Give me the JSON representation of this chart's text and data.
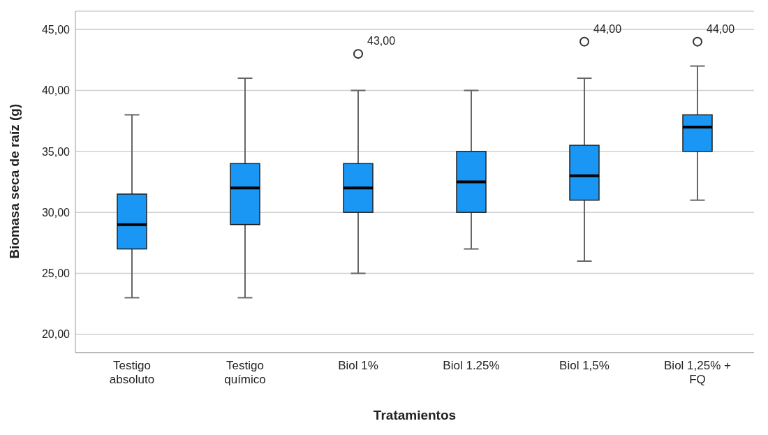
{
  "chart_data": {
    "type": "box",
    "xlabel": "Tratamientos",
    "ylabel": "Biomasa seca de raíz (g)",
    "categories": [
      "Testigo absoluto",
      "Testigo químico",
      "Biol 1%",
      "Biol 1.25%",
      "Biol 1,5%",
      "Biol 1,25% + FQ"
    ],
    "color": "#1a97f5",
    "boxes": [
      {
        "low": 23,
        "q1": 27,
        "median": 29,
        "q3": 31.5,
        "high": 38
      },
      {
        "low": 23,
        "q1": 29,
        "median": 32,
        "q3": 34,
        "high": 41
      },
      {
        "low": 25,
        "q1": 30,
        "median": 32,
        "q3": 34,
        "high": 40,
        "outliers": [
          43
        ]
      },
      {
        "low": 27,
        "q1": 30,
        "median": 32.5,
        "q3": 35,
        "high": 40
      },
      {
        "low": 26,
        "q1": 31,
        "median": 33,
        "q3": 35.5,
        "high": 41,
        "outliers": [
          44
        ]
      },
      {
        "low": 31,
        "q1": 35,
        "median": 37,
        "q3": 38,
        "high": 42,
        "outliers": [
          44
        ]
      }
    ],
    "ylim": [
      18.5,
      46.5
    ],
    "yticks": [
      {
        "value": 20,
        "label": "20,00"
      },
      {
        "value": 25,
        "label": "25,00"
      },
      {
        "value": 30,
        "label": "30,00"
      },
      {
        "value": 35,
        "label": "35,00"
      },
      {
        "value": 40,
        "label": "40,00"
      },
      {
        "value": 45,
        "label": "45,00"
      }
    ],
    "grid": "y",
    "annotations": [
      "43,00",
      "44,00",
      "44,00"
    ]
  }
}
